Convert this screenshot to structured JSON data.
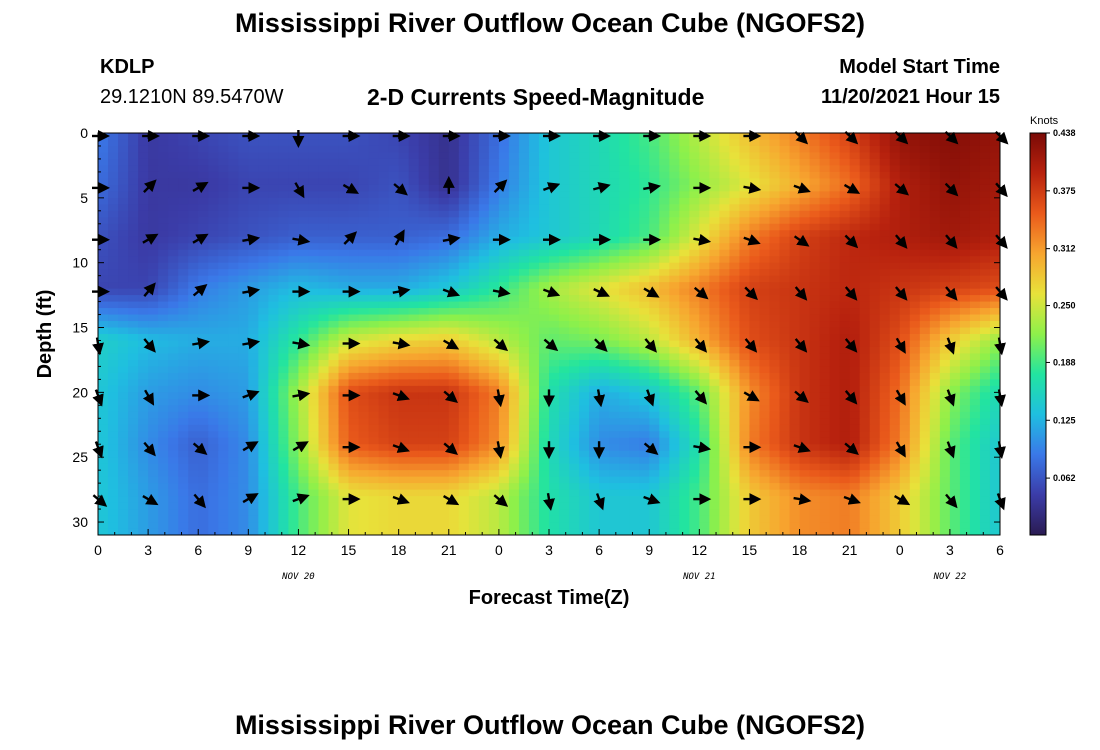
{
  "header": {
    "title": "Mississippi River Outflow Ocean Cube (NGOFS2)",
    "station": "KDLP",
    "coords": "29.1210N  89.5470W",
    "subtitle": "2-D Currents Speed-Magnitude",
    "model_label": "Model Start Time",
    "model_time": "11/20/2021 Hour 15"
  },
  "footer": {
    "title": "Mississippi River Outflow Ocean Cube (NGOFS2)"
  },
  "chart_data": {
    "type": "heatmap",
    "title": "2-D Currents Speed-Magnitude",
    "xlabel": "Forecast Time(Z)",
    "ylabel": "Depth (ft)",
    "x_tick_labels": [
      "0",
      "3",
      "6",
      "9",
      "12",
      "15",
      "18",
      "21",
      "0",
      "3",
      "6",
      "9",
      "12",
      "15",
      "18",
      "21",
      "0",
      "3",
      "6"
    ],
    "x_range_hours": [
      0,
      54
    ],
    "date_labels": [
      {
        "label": "NOV 20",
        "at_hour": 12
      },
      {
        "label": "NOV 21",
        "at_hour": 36
      },
      {
        "label": "NOV 22",
        "at_hour": 51
      }
    ],
    "y_ticks": [
      0,
      5,
      10,
      15,
      20,
      25,
      30
    ],
    "y_range": [
      0,
      31
    ],
    "y_inverted": true,
    "colorbar": {
      "unit": "Knots",
      "ticks": [
        "0.438",
        "0.375",
        "0.312",
        "0.250",
        "0.188",
        "0.125",
        "0.062"
      ],
      "range": [
        0,
        0.438
      ],
      "colors": [
        "#2a1b52",
        "#3b3ca8",
        "#3a78e8",
        "#1fbfe0",
        "#22e4a0",
        "#8ef04a",
        "#e8e23a",
        "#f7a52f",
        "#ea5a1b",
        "#b8220e",
        "#7a0a06"
      ]
    },
    "hours": [
      0,
      3,
      6,
      9,
      12,
      15,
      18,
      21,
      24,
      27,
      30,
      33,
      36,
      39,
      42,
      45,
      48,
      51,
      54
    ],
    "depths": [
      0,
      4,
      8,
      12,
      16,
      20,
      24,
      28
    ],
    "speed_knots": [
      [
        0.09,
        0.04,
        0.05,
        0.06,
        0.06,
        0.06,
        0.05,
        0.03,
        0.08,
        0.14,
        0.16,
        0.19,
        0.24,
        0.29,
        0.33,
        0.37,
        0.42,
        0.43,
        0.42
      ],
      [
        0.08,
        0.04,
        0.04,
        0.05,
        0.05,
        0.05,
        0.06,
        0.03,
        0.09,
        0.14,
        0.16,
        0.18,
        0.22,
        0.26,
        0.3,
        0.34,
        0.4,
        0.42,
        0.41
      ],
      [
        0.06,
        0.04,
        0.05,
        0.06,
        0.07,
        0.07,
        0.07,
        0.08,
        0.12,
        0.14,
        0.16,
        0.19,
        0.26,
        0.33,
        0.37,
        0.39,
        0.4,
        0.41,
        0.4
      ],
      [
        0.05,
        0.05,
        0.09,
        0.11,
        0.13,
        0.12,
        0.12,
        0.14,
        0.18,
        0.23,
        0.26,
        0.29,
        0.33,
        0.37,
        0.38,
        0.39,
        0.38,
        0.37,
        0.36
      ],
      [
        0.15,
        0.13,
        0.12,
        0.12,
        0.18,
        0.25,
        0.27,
        0.28,
        0.24,
        0.2,
        0.21,
        0.24,
        0.3,
        0.36,
        0.38,
        0.4,
        0.36,
        0.28,
        0.22
      ],
      [
        0.14,
        0.11,
        0.1,
        0.11,
        0.23,
        0.36,
        0.38,
        0.38,
        0.33,
        0.17,
        0.12,
        0.14,
        0.2,
        0.32,
        0.38,
        0.4,
        0.34,
        0.22,
        0.16
      ],
      [
        0.14,
        0.1,
        0.07,
        0.1,
        0.22,
        0.35,
        0.37,
        0.37,
        0.32,
        0.16,
        0.1,
        0.09,
        0.17,
        0.33,
        0.38,
        0.4,
        0.33,
        0.2,
        0.14
      ],
      [
        0.14,
        0.11,
        0.08,
        0.1,
        0.19,
        0.26,
        0.27,
        0.27,
        0.24,
        0.17,
        0.14,
        0.14,
        0.19,
        0.28,
        0.32,
        0.33,
        0.28,
        0.2,
        0.14
      ]
    ],
    "vector_direction_deg": [
      [
        90,
        90,
        90,
        90,
        180,
        90,
        90,
        90,
        90,
        90,
        90,
        90,
        90,
        90,
        135,
        135,
        135,
        135,
        135
      ],
      [
        90,
        45,
        60,
        90,
        150,
        120,
        130,
        0,
        45,
        70,
        75,
        80,
        90,
        100,
        110,
        120,
        130,
        135,
        140
      ],
      [
        90,
        60,
        60,
        80,
        100,
        45,
        30,
        80,
        90,
        90,
        90,
        90,
        100,
        110,
        125,
        135,
        140,
        140,
        140
      ],
      [
        90,
        40,
        50,
        80,
        90,
        90,
        80,
        110,
        100,
        110,
        115,
        120,
        130,
        135,
        140,
        140,
        140,
        140,
        140
      ],
      [
        170,
        140,
        80,
        80,
        100,
        90,
        100,
        120,
        130,
        130,
        135,
        140,
        140,
        140,
        140,
        140,
        150,
        160,
        170
      ],
      [
        160,
        150,
        90,
        70,
        80,
        90,
        110,
        130,
        170,
        180,
        170,
        160,
        140,
        120,
        130,
        140,
        150,
        160,
        170
      ],
      [
        160,
        140,
        130,
        60,
        60,
        90,
        110,
        130,
        170,
        180,
        180,
        130,
        100,
        90,
        110,
        130,
        150,
        160,
        170
      ],
      [
        130,
        120,
        140,
        60,
        70,
        90,
        110,
        120,
        130,
        170,
        160,
        110,
        90,
        90,
        100,
        110,
        120,
        140,
        160
      ]
    ]
  }
}
